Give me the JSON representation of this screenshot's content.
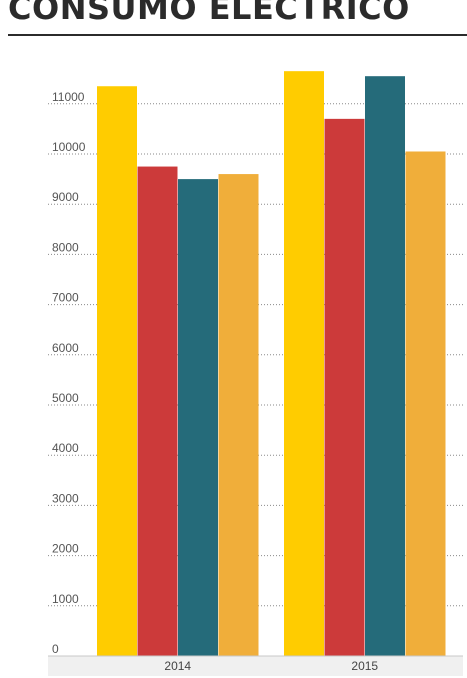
{
  "chart_data": {
    "type": "bar",
    "title": "CONSUMO ELECTRICO",
    "xlabel": "",
    "ylabel": "",
    "categories": [
      "2014",
      "2015"
    ],
    "series": [
      {
        "color": "#ffcc00",
        "values": [
          11350,
          11650
        ]
      },
      {
        "color": "#cc3a3a",
        "values": [
          9750,
          10700
        ]
      },
      {
        "color": "#256b7a",
        "values": [
          9500,
          11550
        ]
      },
      {
        "color": "#f0ae3a",
        "values": [
          9600,
          10050
        ]
      }
    ],
    "y_ticks": [
      "0",
      "1000",
      "2000",
      "3000",
      "4000",
      "5000",
      "6000",
      "7000",
      "8000",
      "9000",
      "10000",
      "11000"
    ],
    "ylim": [
      0,
      12000
    ],
    "grid": true,
    "legend": "none"
  }
}
